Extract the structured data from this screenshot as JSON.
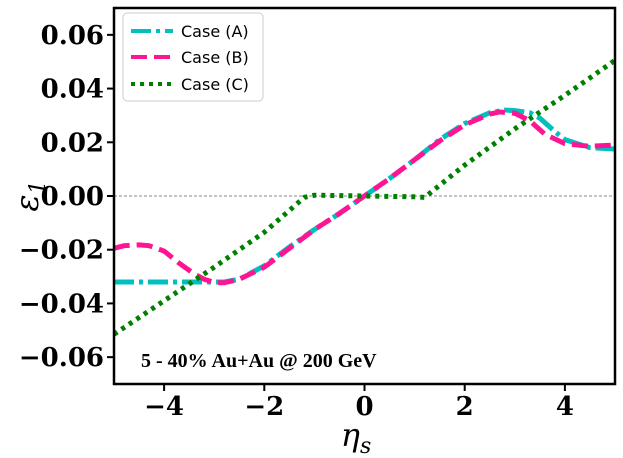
{
  "chart_data": {
    "type": "line",
    "title": "",
    "xlabel": "η_s",
    "ylabel": "ε_1",
    "xlim": [
      -5,
      5
    ],
    "ylim": [
      -0.07,
      0.07
    ],
    "xticks": [
      -4,
      -2,
      0,
      2,
      4
    ],
    "xtick_labels": [
      "−4",
      "−2",
      "0",
      "2",
      "4"
    ],
    "yticks": [
      -0.06,
      -0.04,
      -0.02,
      0.0,
      0.02,
      0.04,
      0.06
    ],
    "ytick_labels": [
      "−0.06",
      "−0.04",
      "−0.02",
      "0.00",
      "0.02",
      "0.04",
      "0.06"
    ],
    "reference_line": {
      "y": 0.0,
      "style": "dashed",
      "color": "#888888"
    },
    "annotation": "5 - 40% Au+Au @ 200 GeV",
    "legend_position": "top-left",
    "series": [
      {
        "name": "Case (A)",
        "color": "#00bfbf",
        "style": "dashdot",
        "x": [
          -5.0,
          -4.5,
          -4.0,
          -3.5,
          -3.0,
          -2.8,
          -2.5,
          -2.0,
          -1.5,
          -1.0,
          -0.5,
          0.0,
          0.5,
          1.0,
          1.5,
          2.0,
          2.5,
          2.8,
          3.0,
          3.3,
          3.5,
          3.8,
          4.0,
          4.5,
          5.0
        ],
        "y": [
          -0.032,
          -0.032,
          -0.032,
          -0.032,
          -0.032,
          -0.032,
          -0.031,
          -0.026,
          -0.019,
          -0.0125,
          -0.0065,
          0.0,
          0.0065,
          0.0135,
          0.021,
          0.027,
          0.031,
          0.032,
          0.0318,
          0.031,
          0.029,
          0.024,
          0.021,
          0.018,
          0.0175
        ]
      },
      {
        "name": "Case (B)",
        "color": "#ff1493",
        "style": "dashed",
        "x": [
          -5.0,
          -4.8,
          -4.5,
          -4.3,
          -4.0,
          -3.7,
          -3.4,
          -3.2,
          -3.0,
          -2.8,
          -2.5,
          -2.0,
          -1.5,
          -1.0,
          -0.5,
          0.0,
          0.5,
          1.0,
          1.5,
          2.0,
          2.5,
          2.7,
          3.0,
          3.3,
          3.6,
          4.0,
          4.5,
          5.0
        ],
        "y": [
          -0.0195,
          -0.0185,
          -0.0182,
          -0.0185,
          -0.0205,
          -0.025,
          -0.029,
          -0.031,
          -0.0322,
          -0.0323,
          -0.031,
          -0.0265,
          -0.0195,
          -0.0125,
          -0.0065,
          0.0,
          0.0065,
          0.0135,
          0.0205,
          0.0265,
          0.0305,
          0.0313,
          0.0308,
          0.028,
          0.023,
          0.0195,
          0.0185,
          0.019
        ]
      },
      {
        "name": "Case (C)",
        "color": "#008000",
        "style": "dotted",
        "x": [
          -5.0,
          -4.0,
          -3.0,
          -2.0,
          -1.2,
          -1.0,
          0.0,
          1.0,
          1.2,
          2.0,
          3.0,
          4.0,
          5.0
        ],
        "y": [
          -0.0515,
          -0.039,
          -0.0265,
          -0.0135,
          -0.0005,
          0.0003,
          0.0,
          -0.0003,
          -0.0005,
          0.0115,
          0.025,
          0.0375,
          0.0505
        ]
      }
    ]
  }
}
